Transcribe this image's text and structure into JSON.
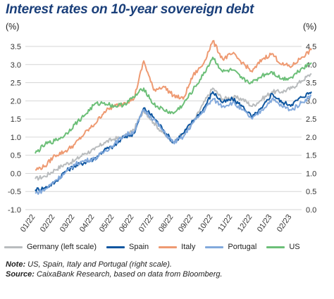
{
  "title": "Interest rates on 10-year sovereign debt",
  "unit_left": "(%)",
  "unit_right": "(%)",
  "note_label": "Note:",
  "note_text": " US, Spain, Italy and Portugal (right scale).",
  "source_label": "Source:",
  "source_text": " CaixaBank Research, based on data from Bloomberg.",
  "chart_data": {
    "type": "line",
    "grid": "horizontal",
    "legend_position": "bottom",
    "x_ticks": [
      "01/22",
      "02/22",
      "03/22",
      "04/22",
      "05/22",
      "06/22",
      "07/22",
      "08/22",
      "09/22",
      "10/22",
      "11/22",
      "12/22",
      "01/23",
      "02/23"
    ],
    "y_left": {
      "min": -1.0,
      "max": 3.5,
      "ticks": [
        "-1.0",
        "-0.5",
        "0.0",
        "0.5",
        "1.0",
        "1.5",
        "2.0",
        "2.5",
        "3.0",
        "3.5"
      ]
    },
    "y_right": {
      "min": 0.0,
      "max": 4.5,
      "ticks": [
        "0.0",
        "0.5",
        "1.0",
        "1.5",
        "2.0",
        "2.5",
        "3.0",
        "3.5",
        "4.0",
        "4.5"
      ]
    },
    "series": [
      {
        "name": "Germany (left scale)",
        "axis": "left",
        "color": "#b9bcbe",
        "points": [
          [
            0,
            -0.15
          ],
          [
            0.5,
            -0.08
          ],
          [
            1,
            0.1
          ],
          [
            1.5,
            0.25
          ],
          [
            2,
            0.35
          ],
          [
            2.5,
            0.55
          ],
          [
            3,
            0.65
          ],
          [
            3.5,
            0.85
          ],
          [
            4,
            0.95
          ],
          [
            4.5,
            1.0
          ],
          [
            5,
            1.2
          ],
          [
            5.5,
            1.75
          ],
          [
            6,
            1.4
          ],
          [
            6.5,
            1.1
          ],
          [
            7,
            0.85
          ],
          [
            7.5,
            1.1
          ],
          [
            8,
            1.4
          ],
          [
            8.5,
            1.9
          ],
          [
            9,
            2.35
          ],
          [
            9.5,
            2.05
          ],
          [
            10,
            2.1
          ],
          [
            10.5,
            2.05
          ],
          [
            11,
            1.85
          ],
          [
            11.5,
            2.05
          ],
          [
            12,
            2.25
          ],
          [
            12.5,
            2.25
          ],
          [
            13,
            2.35
          ],
          [
            13.5,
            2.55
          ],
          [
            14,
            2.75
          ]
        ]
      },
      {
        "name": "Spain",
        "axis": "right",
        "color": "#0e56a0",
        "points": [
          [
            0,
            0.55
          ],
          [
            0.5,
            0.6
          ],
          [
            1,
            0.75
          ],
          [
            1.5,
            1.05
          ],
          [
            2,
            1.2
          ],
          [
            2.5,
            1.3
          ],
          [
            3,
            1.4
          ],
          [
            3.5,
            1.65
          ],
          [
            4,
            1.75
          ],
          [
            4.5,
            2.0
          ],
          [
            5,
            2.1
          ],
          [
            5.5,
            2.8
          ],
          [
            6,
            2.55
          ],
          [
            6.5,
            2.2
          ],
          [
            7,
            1.85
          ],
          [
            7.5,
            2.1
          ],
          [
            8,
            2.45
          ],
          [
            8.5,
            2.75
          ],
          [
            9,
            3.25
          ],
          [
            9.5,
            2.95
          ],
          [
            10,
            3.05
          ],
          [
            10.5,
            2.85
          ],
          [
            11,
            2.55
          ],
          [
            11.5,
            2.8
          ],
          [
            12,
            3.2
          ],
          [
            12.5,
            2.95
          ],
          [
            13,
            2.9
          ],
          [
            13.5,
            3.1
          ],
          [
            14,
            3.25
          ]
        ]
      },
      {
        "name": "Italy",
        "axis": "right",
        "color": "#ee9a72",
        "points": [
          [
            0,
            1.1
          ],
          [
            0.5,
            1.2
          ],
          [
            1,
            1.5
          ],
          [
            1.5,
            1.6
          ],
          [
            2,
            1.8
          ],
          [
            2.5,
            2.1
          ],
          [
            3,
            2.35
          ],
          [
            3.5,
            2.7
          ],
          [
            4,
            2.85
          ],
          [
            4.5,
            2.95
          ],
          [
            5,
            3.05
          ],
          [
            5.5,
            4.1
          ],
          [
            6,
            3.3
          ],
          [
            6.5,
            3.4
          ],
          [
            7,
            3.15
          ],
          [
            7.5,
            3.05
          ],
          [
            8,
            3.7
          ],
          [
            8.5,
            4.0
          ],
          [
            9,
            4.65
          ],
          [
            9.5,
            4.15
          ],
          [
            10,
            4.3
          ],
          [
            10.5,
            4.05
          ],
          [
            11,
            3.8
          ],
          [
            11.5,
            4.15
          ],
          [
            12,
            4.3
          ],
          [
            12.5,
            4.0
          ],
          [
            13,
            3.95
          ],
          [
            13.5,
            4.2
          ],
          [
            14,
            4.4
          ]
        ]
      },
      {
        "name": "Portugal",
        "axis": "right",
        "color": "#82a9dc",
        "points": [
          [
            0,
            0.45
          ],
          [
            0.5,
            0.55
          ],
          [
            1,
            0.8
          ],
          [
            1.5,
            1.0
          ],
          [
            2,
            1.25
          ],
          [
            2.5,
            1.35
          ],
          [
            3,
            1.4
          ],
          [
            3.5,
            1.6
          ],
          [
            4,
            1.8
          ],
          [
            4.5,
            2.05
          ],
          [
            5,
            2.15
          ],
          [
            5.5,
            2.75
          ],
          [
            6,
            2.5
          ],
          [
            6.5,
            2.15
          ],
          [
            7,
            1.85
          ],
          [
            7.5,
            2.0
          ],
          [
            8,
            2.4
          ],
          [
            8.5,
            2.7
          ],
          [
            9,
            3.05
          ],
          [
            9.5,
            2.85
          ],
          [
            10,
            2.95
          ],
          [
            10.5,
            2.75
          ],
          [
            11,
            2.5
          ],
          [
            11.5,
            2.75
          ],
          [
            12,
            3.05
          ],
          [
            12.5,
            2.85
          ],
          [
            13,
            2.75
          ],
          [
            13.5,
            2.95
          ],
          [
            14,
            3.15
          ]
        ]
      },
      {
        "name": "US",
        "axis": "right",
        "color": "#6cbf78",
        "points": [
          [
            0,
            1.55
          ],
          [
            0.5,
            1.8
          ],
          [
            1,
            1.9
          ],
          [
            1.5,
            2.05
          ],
          [
            2,
            2.35
          ],
          [
            2.5,
            2.6
          ],
          [
            3,
            2.9
          ],
          [
            3.5,
            2.95
          ],
          [
            4,
            2.85
          ],
          [
            4.5,
            2.9
          ],
          [
            5,
            3.1
          ],
          [
            5.5,
            3.35
          ],
          [
            6,
            2.9
          ],
          [
            6.5,
            2.75
          ],
          [
            7,
            2.65
          ],
          [
            7.5,
            2.9
          ],
          [
            8,
            3.3
          ],
          [
            8.5,
            3.7
          ],
          [
            9,
            4.2
          ],
          [
            9.5,
            3.8
          ],
          [
            10,
            3.85
          ],
          [
            10.5,
            3.6
          ],
          [
            11,
            3.5
          ],
          [
            11.5,
            3.7
          ],
          [
            12,
            3.8
          ],
          [
            12.5,
            3.6
          ],
          [
            13,
            3.65
          ],
          [
            13.5,
            3.9
          ],
          [
            14,
            4.05
          ]
        ]
      }
    ]
  }
}
